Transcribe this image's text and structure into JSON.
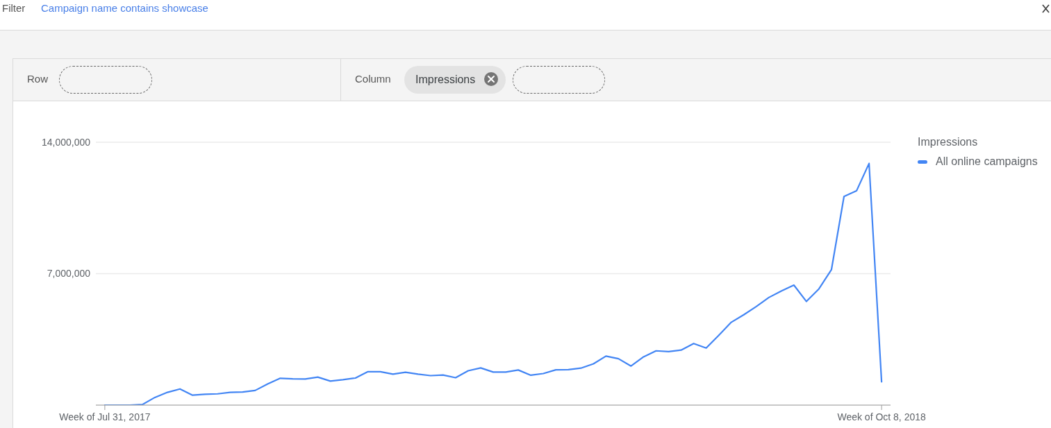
{
  "chart_data": {
    "type": "line",
    "annotations": [
      "Filter",
      "Campaign name contains showcase",
      "Row",
      "Column",
      "Impressions"
    ],
    "legend_title": "Impressions",
    "x": [
      "2017-07-31",
      "2017-08-07",
      "2017-08-14",
      "2017-08-21",
      "2017-08-28",
      "2017-09-04",
      "2017-09-11",
      "2017-09-18",
      "2017-09-25",
      "2017-10-02",
      "2017-10-09",
      "2017-10-16",
      "2017-10-23",
      "2017-10-30",
      "2017-11-06",
      "2017-11-13",
      "2017-11-20",
      "2017-11-27",
      "2017-12-04",
      "2017-12-11",
      "2017-12-18",
      "2017-12-25",
      "2018-01-01",
      "2018-01-08",
      "2018-01-15",
      "2018-01-22",
      "2018-01-29",
      "2018-02-05",
      "2018-02-12",
      "2018-02-19",
      "2018-02-26",
      "2018-03-05",
      "2018-03-12",
      "2018-03-19",
      "2018-03-26",
      "2018-04-02",
      "2018-04-09",
      "2018-04-16",
      "2018-04-23",
      "2018-04-30",
      "2018-05-07",
      "2018-05-14",
      "2018-05-21",
      "2018-05-28",
      "2018-06-04",
      "2018-06-11",
      "2018-06-18",
      "2018-06-25",
      "2018-07-02",
      "2018-07-09",
      "2018-07-16",
      "2018-07-23",
      "2018-07-30",
      "2018-08-06",
      "2018-08-13",
      "2018-08-20",
      "2018-08-27",
      "2018-09-03",
      "2018-09-10",
      "2018-09-17",
      "2018-09-24",
      "2018-10-01",
      "2018-10-08"
    ],
    "series": [
      {
        "name": "All online campaigns",
        "color": "#4285f4",
        "values": [
          0,
          0,
          0,
          30000,
          410000,
          680000,
          860000,
          530000,
          580000,
          600000,
          680000,
          700000,
          780000,
          1130000,
          1430000,
          1400000,
          1390000,
          1490000,
          1280000,
          1350000,
          1440000,
          1780000,
          1780000,
          1650000,
          1750000,
          1650000,
          1570000,
          1600000,
          1460000,
          1830000,
          1980000,
          1760000,
          1760000,
          1870000,
          1590000,
          1680000,
          1880000,
          1890000,
          1970000,
          2200000,
          2610000,
          2470000,
          2080000,
          2570000,
          2890000,
          2850000,
          2930000,
          3280000,
          3040000,
          3710000,
          4410000,
          4810000,
          5250000,
          5730000,
          6080000,
          6390000,
          5520000,
          6190000,
          7220000,
          11110000,
          11410000,
          12870000,
          1240000
        ]
      }
    ],
    "xlim": [
      "2017-07-26",
      "2018-10-13"
    ],
    "xticks": [
      {
        "value": "2017-07-31",
        "label": "Week of Jul 31, 2017"
      },
      {
        "value": "2018-10-08",
        "label": "Week of Oct 8, 2018"
      }
    ],
    "ylim": [
      0,
      14000000
    ],
    "yticks": [
      {
        "value": 7000000,
        "label": "7,000,000"
      },
      {
        "value": 14000000,
        "label": "14,000,000"
      }
    ],
    "grid": "y",
    "legend": "top right"
  }
}
